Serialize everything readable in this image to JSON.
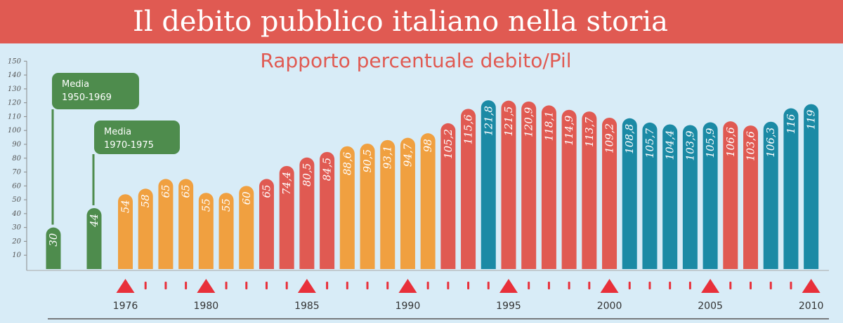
{
  "title": "Il debito pubblico italiano nella storia",
  "colors": {
    "band": "#e05a52",
    "background": "#d8ecf7",
    "green": "#4e8c4d",
    "orange": "#f0a040",
    "red": "#e05a52",
    "teal": "#1b8aa5"
  },
  "chart_data": {
    "type": "bar",
    "title": "Rapporto percentuale debito/Pil",
    "xlabel": "",
    "ylabel": "",
    "ylim": [
      0,
      150
    ],
    "yticks": [
      10,
      20,
      30,
      40,
      50,
      60,
      70,
      80,
      90,
      100,
      110,
      120,
      130,
      140,
      150
    ],
    "grid": false,
    "averages": [
      {
        "label_line1": "Media",
        "label_line2": "1950-1969",
        "value": 30,
        "display": "30"
      },
      {
        "label_line1": "Media",
        "label_line2": "1970-1975",
        "value": 44,
        "display": "44"
      }
    ],
    "years": [
      1976,
      1977,
      1978,
      1979,
      1980,
      1981,
      1982,
      1983,
      1984,
      1985,
      1986,
      1987,
      1988,
      1989,
      1990,
      1991,
      1992,
      1993,
      1994,
      1995,
      1996,
      1997,
      1998,
      1999,
      2000,
      2001,
      2002,
      2003,
      2004,
      2005,
      2006,
      2007,
      2008,
      2009,
      2010
    ],
    "values": [
      54,
      58,
      65,
      65,
      55,
      55,
      60,
      65,
      74.4,
      80.5,
      84.5,
      88.6,
      90.5,
      93.1,
      94.7,
      98,
      105.2,
      115.6,
      121.8,
      121.5,
      120.9,
      118.1,
      114.9,
      113.7,
      109.2,
      108.8,
      105.7,
      104.4,
      103.9,
      105.9,
      106.6,
      103.6,
      106.3,
      116,
      119
    ],
    "display_values": [
      "54",
      "58",
      "65",
      "65",
      "55",
      "55",
      "60",
      "65",
      "74,4",
      "80,5",
      "84,5",
      "88,6",
      "90,5",
      "93,1",
      "94,7",
      "98",
      "105,2",
      "115,6",
      "121,8",
      "121,5",
      "120,9",
      "118,1",
      "114,9",
      "113,7",
      "109,2",
      "108,8",
      "105,7",
      "104,4",
      "103,9",
      "105,9",
      "106,6",
      "103,6",
      "106,3",
      "116",
      "119"
    ],
    "bar_colors": [
      "orange",
      "orange",
      "orange",
      "orange",
      "orange",
      "orange",
      "orange",
      "red",
      "red",
      "red",
      "red",
      "orange",
      "orange",
      "orange",
      "orange",
      "orange",
      "red",
      "red",
      "teal",
      "red",
      "red",
      "red",
      "red",
      "red",
      "red",
      "teal",
      "teal",
      "teal",
      "teal",
      "teal",
      "red",
      "red",
      "teal",
      "teal",
      "teal"
    ],
    "x_tick_labels": [
      "1976",
      "1980",
      "1985",
      "1990",
      "1995",
      "2000",
      "2005",
      "2010"
    ],
    "x_tick_years": [
      1976,
      1980,
      1985,
      1990,
      1995,
      2000,
      2005,
      2010
    ]
  }
}
